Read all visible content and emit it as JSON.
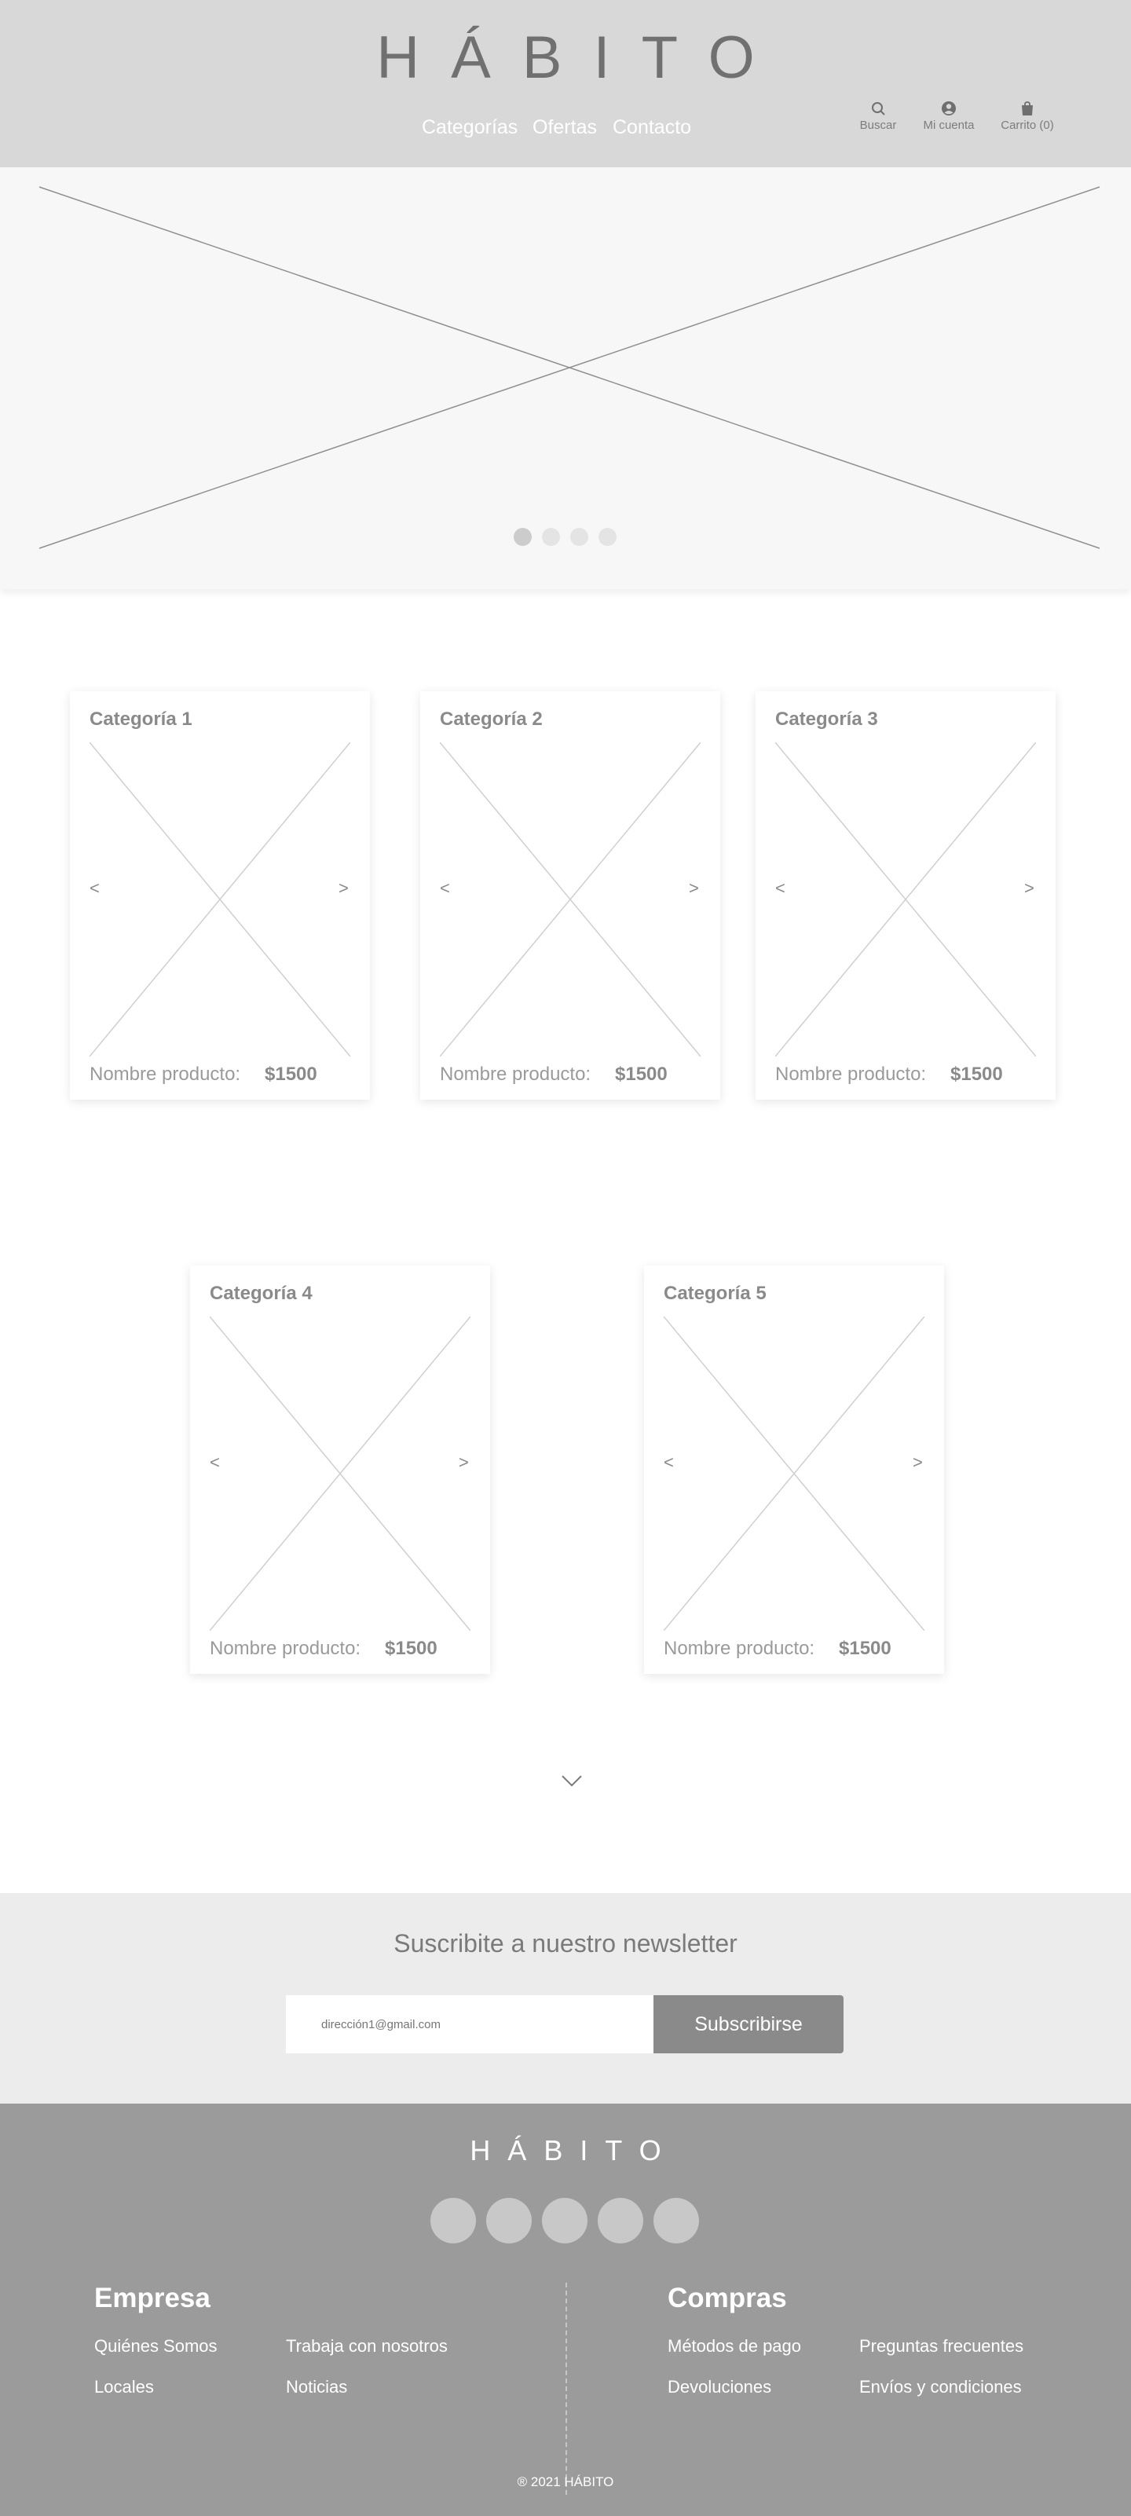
{
  "header": {
    "logo": "HÁBITO",
    "nav": [
      "Categorías",
      "Ofertas",
      "Contacto"
    ],
    "actions": {
      "search": "Buscar",
      "account": "Mi cuenta",
      "cart": "Carrito (0)"
    }
  },
  "hero": {
    "slides_count": 4,
    "active_slide": 1,
    "dot_colors": [
      "#cccccc",
      "#e4e4e4",
      "#e4e4e4",
      "#e4e4e4"
    ]
  },
  "categories": [
    {
      "title": "Categoría 1",
      "product_label": "Nombre producto:",
      "price": "$1500",
      "prev": "<",
      "next": ">"
    },
    {
      "title": "Categoría 2",
      "product_label": "Nombre producto:",
      "price": "$1500",
      "prev": "<",
      "next": ">"
    },
    {
      "title": "Categoría 3",
      "product_label": "Nombre producto:",
      "price": "$1500",
      "prev": "<",
      "next": ">"
    },
    {
      "title": "Categoría 4",
      "product_label": "Nombre producto:",
      "price": "$1500",
      "prev": "<",
      "next": ">"
    },
    {
      "title": "Categoría 5",
      "product_label": "Nombre producto:",
      "price": "$1500",
      "prev": "<",
      "next": ">"
    }
  ],
  "newsletter": {
    "title": "Suscribite a nuestro newsletter",
    "placeholder": "dirección1@gmail.com",
    "button": "Subscribirse"
  },
  "footer": {
    "logo": "HÁBITO",
    "social_count": 5,
    "empresa": {
      "heading": "Empresa",
      "links": [
        "Quiénes Somos",
        "Trabaja con nosotros",
        "Locales",
        "Noticias"
      ]
    },
    "compras": {
      "heading": "Compras",
      "links": [
        "Métodos de pago",
        "Preguntas frecuentes",
        "Devoluciones",
        "Envíos y condiciones"
      ]
    },
    "copyright": "® 2021 HÁBITO"
  },
  "colors": {
    "header_bg": "#d8d8d8",
    "hero_bg": "#f7f7f7",
    "newsletter_bg": "#ececec",
    "footer_bg": "#9b9b9b",
    "button_bg": "#8a8a8a"
  }
}
